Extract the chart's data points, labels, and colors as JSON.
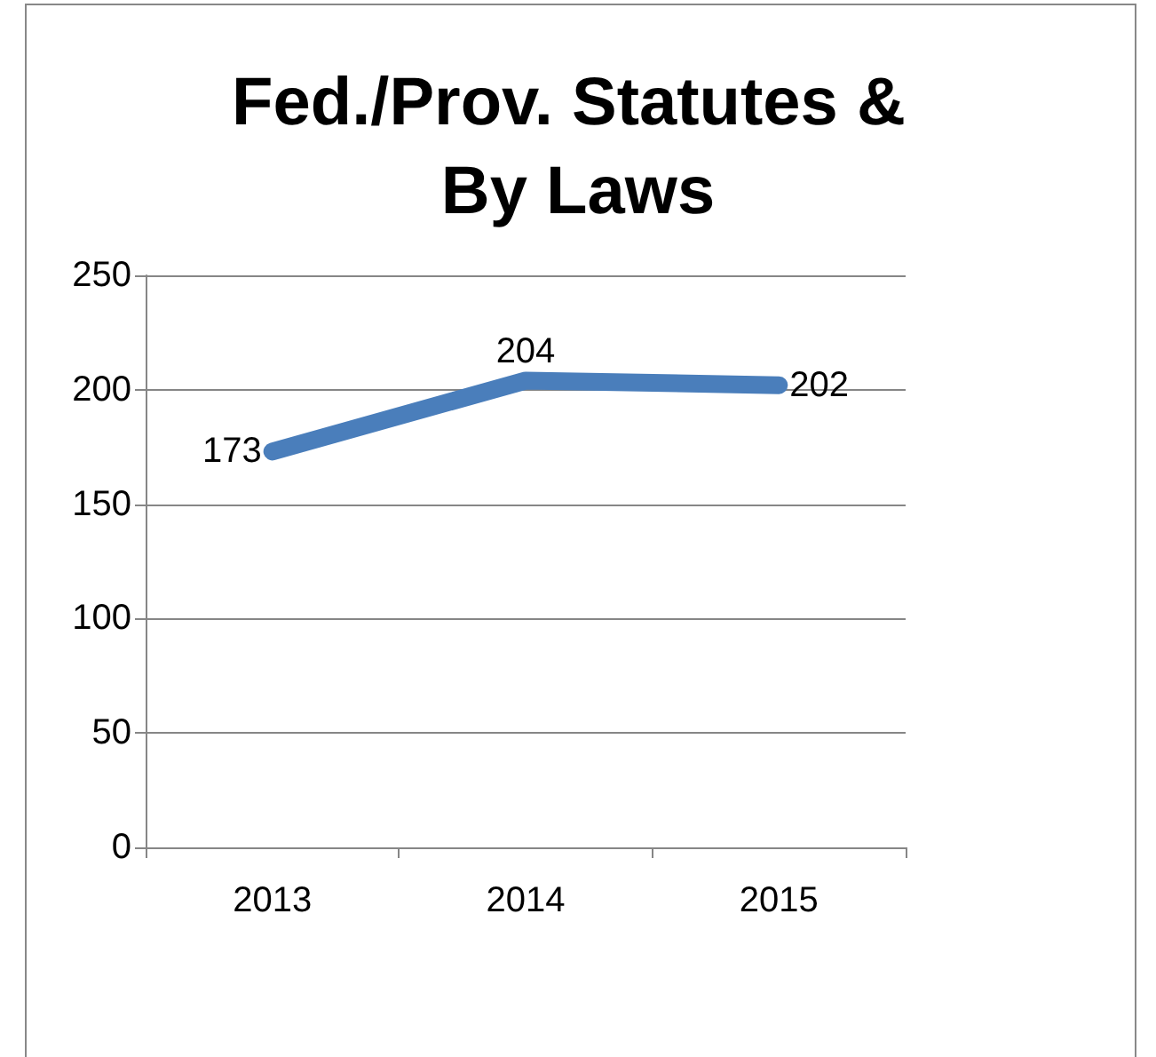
{
  "chart_data": {
    "type": "line",
    "title": "Fed./Prov. Statutes & By Laws",
    "categories": [
      "2013",
      "2014",
      "2015"
    ],
    "series": [
      {
        "color": "#4a7ebb",
        "values": [
          173,
          204,
          202
        ]
      }
    ],
    "ylim": [
      0,
      250
    ],
    "yticks": [
      0,
      50,
      100,
      150,
      200,
      250
    ],
    "grid": "y",
    "marker": "none",
    "line_style": "solid",
    "data_labels": true
  }
}
